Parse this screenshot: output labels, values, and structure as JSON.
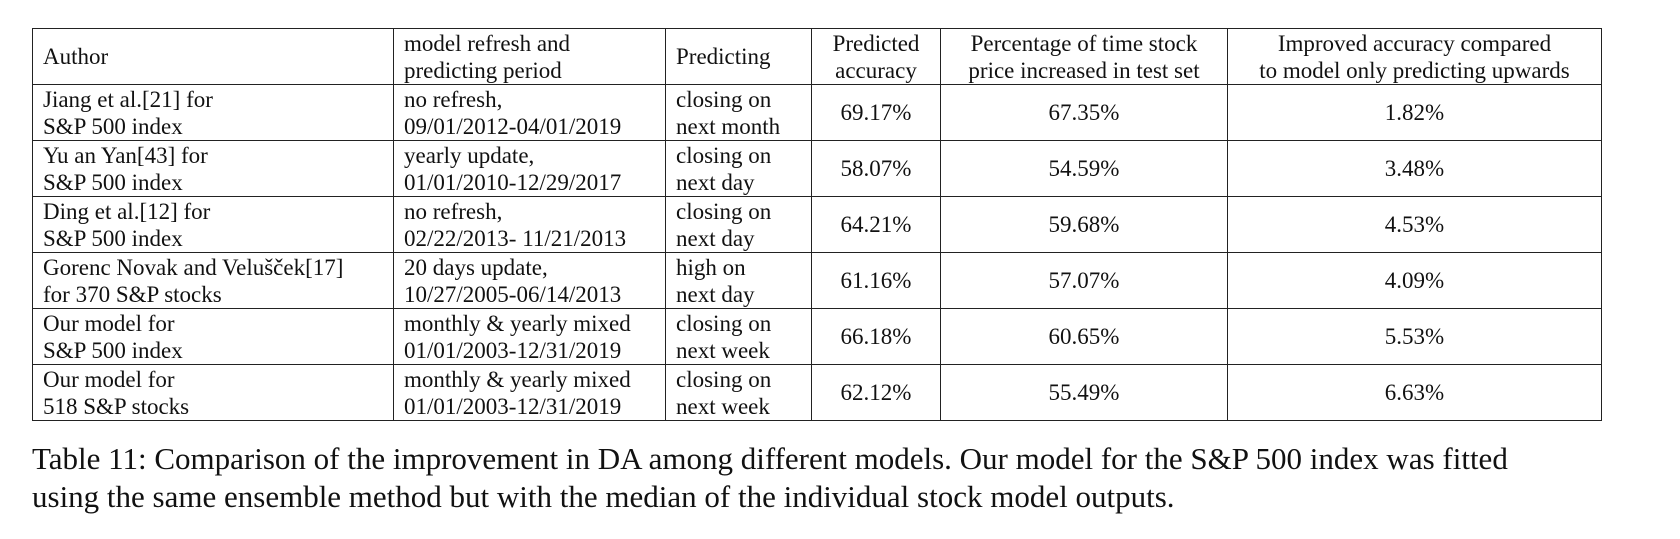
{
  "table": {
    "headers": {
      "author": [
        "Author"
      ],
      "period": [
        "model refresh and",
        "predicting period"
      ],
      "predicting": [
        "Predicting"
      ],
      "accuracy": [
        "Predicted",
        "accuracy"
      ],
      "pct_increase": [
        "Percentage of time stock",
        "price increased in test set"
      ],
      "improvement": [
        "Improved accuracy compared",
        "to model only predicting upwards"
      ]
    },
    "rows": [
      {
        "author": [
          "Jiang et al.[21] for",
          "S&P 500 index"
        ],
        "period": [
          "no refresh,",
          "09/01/2012-04/01/2019"
        ],
        "predicting": [
          "closing on",
          "next month"
        ],
        "accuracy": "69.17%",
        "pct_increase": "67.35%",
        "improvement": "1.82%",
        "improvement_bold": false
      },
      {
        "author": [
          "Yu an Yan[43] for",
          "S&P 500 index"
        ],
        "period": [
          "yearly update,",
          "01/01/2010-12/29/2017"
        ],
        "predicting": [
          "closing on",
          "next day"
        ],
        "accuracy": "58.07%",
        "pct_increase": "54.59%",
        "improvement": "3.48%",
        "improvement_bold": false
      },
      {
        "author": [
          "Ding et al.[12] for",
          "S&P 500 index"
        ],
        "period": [
          "no refresh,",
          "02/22/2013- 11/21/2013"
        ],
        "predicting": [
          "closing on",
          "next day"
        ],
        "accuracy": "64.21%",
        "pct_increase": "59.68%",
        "improvement": "4.53%",
        "improvement_bold": false
      },
      {
        "author": [
          "Gorenc Novak and Velušček[17]",
          "for 370 S&P stocks"
        ],
        "period": [
          "20 days update,",
          "10/27/2005-06/14/2013"
        ],
        "predicting": [
          "high on",
          "next day"
        ],
        "accuracy": "61.16%",
        "pct_increase": "57.07%",
        "improvement": "4.09%",
        "improvement_bold": false
      },
      {
        "author": [
          "Our model for",
          "S&P 500 index"
        ],
        "period": [
          "monthly & yearly mixed",
          "01/01/2003-12/31/2019"
        ],
        "predicting": [
          "closing on",
          "next week"
        ],
        "accuracy": "66.18%",
        "pct_increase": "60.65%",
        "improvement": "5.53%",
        "improvement_bold": true
      },
      {
        "author": [
          "Our model for",
          "518 S&P stocks"
        ],
        "period": [
          "monthly & yearly mixed",
          "01/01/2003-12/31/2019"
        ],
        "predicting": [
          "closing on",
          "next week"
        ],
        "accuracy": "62.12%",
        "pct_increase": "55.49%",
        "improvement": "6.63%",
        "improvement_bold": true
      }
    ]
  },
  "caption": {
    "line1": "Table 11: Comparison of the improvement in DA among different models. Our model for the S&P 500 index was fitted",
    "line2": "using the same ensemble method but with the median of the individual stock model outputs."
  }
}
